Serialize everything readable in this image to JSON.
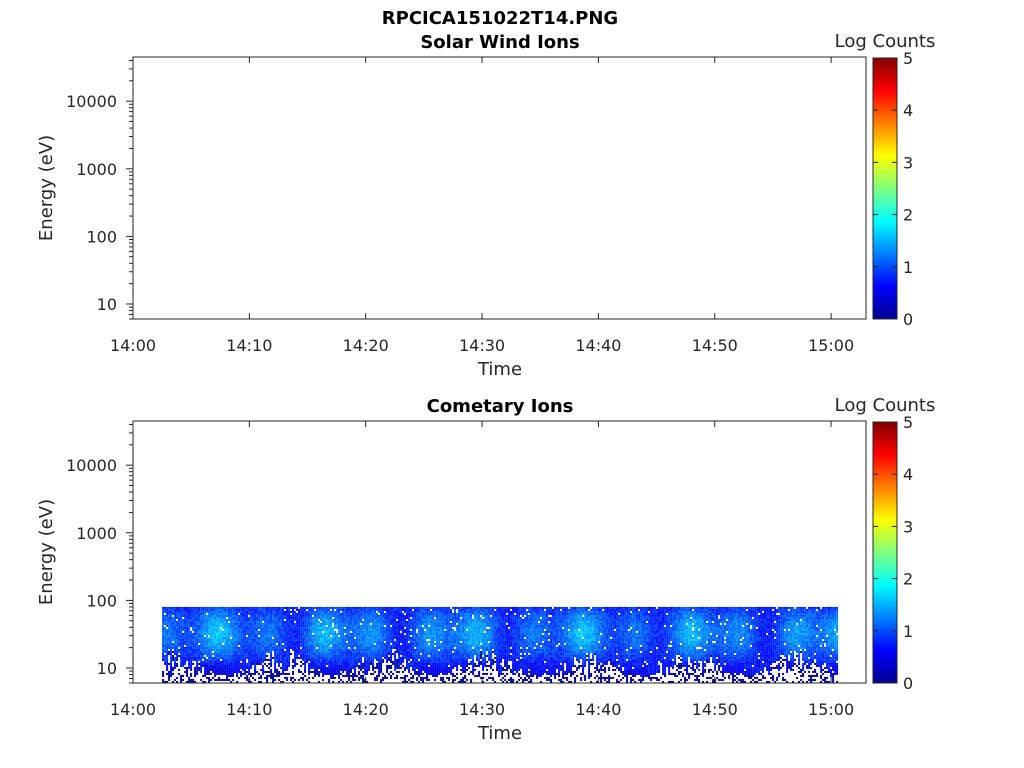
{
  "figure": {
    "title": "RPCICA151022T14.PNG"
  },
  "chart_data": [
    {
      "type": "heatmap",
      "title": "Solar Wind Ions",
      "xlabel": "Time",
      "ylabel": "Energy (eV)",
      "x_ticks": [
        "14:00",
        "14:10",
        "14:20",
        "14:30",
        "14:40",
        "14:50",
        "15:00"
      ],
      "xlim_minutes": [
        0,
        63
      ],
      "y_scale": "log",
      "ylim": [
        6,
        45000
      ],
      "y_ticks": [
        10,
        100,
        1000,
        10000
      ],
      "y_tick_labels": [
        "10",
        "100",
        "1000",
        "10000"
      ],
      "colorbar": {
        "label": "Log Counts",
        "range": [
          0,
          5
        ],
        "ticks": [
          "0",
          "1",
          "2",
          "3",
          "4",
          "5"
        ]
      },
      "data_present": false
    },
    {
      "type": "heatmap",
      "title": "Cometary Ions",
      "xlabel": "Time",
      "ylabel": "Energy (eV)",
      "x_ticks": [
        "14:00",
        "14:10",
        "14:20",
        "14:30",
        "14:40",
        "14:50",
        "15:00"
      ],
      "xlim_minutes": [
        0,
        63
      ],
      "y_scale": "log",
      "ylim": [
        6,
        45000
      ],
      "y_ticks": [
        10,
        100,
        1000,
        10000
      ],
      "y_tick_labels": [
        "10",
        "100",
        "1000",
        "10000"
      ],
      "colorbar": {
        "label": "Log Counts",
        "range": [
          0,
          5
        ],
        "ticks": [
          "0",
          "1",
          "2",
          "3",
          "4",
          "5"
        ]
      },
      "data_present": true,
      "data_extent": {
        "time_start": "14:02.5",
        "time_end": "15:00.5",
        "energy_min_eV": 6,
        "energy_max_eV": 80
      },
      "typical_log_counts": [
        0.5,
        1.8
      ]
    }
  ]
}
